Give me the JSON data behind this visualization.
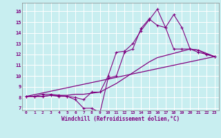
{
  "xlabel": "Windchill (Refroidissement éolien,°C)",
  "bg_color": "#c8eef0",
  "line_color": "#800080",
  "grid_color": "#ffffff",
  "xlim": [
    -0.5,
    23.5
  ],
  "ylim": [
    6.8,
    16.8
  ],
  "yticks": [
    7,
    8,
    9,
    10,
    11,
    12,
    13,
    14,
    15,
    16
  ],
  "xticks": [
    0,
    1,
    2,
    3,
    4,
    5,
    6,
    7,
    8,
    9,
    10,
    11,
    12,
    13,
    14,
    15,
    16,
    17,
    18,
    19,
    20,
    21,
    22,
    23
  ],
  "series": [
    {
      "x": [
        0,
        1,
        2,
        3,
        4,
        5,
        6,
        7,
        8,
        9,
        10,
        11,
        12,
        13,
        14,
        15,
        16,
        17,
        18,
        19,
        20,
        21,
        22,
        23
      ],
      "y": [
        8.1,
        8.1,
        8.3,
        8.3,
        8.2,
        8.1,
        8.0,
        7.8,
        8.5,
        8.5,
        10.0,
        12.2,
        12.3,
        13.0,
        14.2,
        15.2,
        16.2,
        14.5,
        15.7,
        14.5,
        12.5,
        12.4,
        12.0,
        11.8
      ]
    },
    {
      "x": [
        0,
        1,
        2,
        3,
        4,
        5,
        6,
        7,
        8,
        9,
        10,
        11,
        12,
        13,
        14,
        15,
        16,
        17,
        18,
        19,
        20,
        21,
        22,
        23
      ],
      "y": [
        8.1,
        8.1,
        8.1,
        8.2,
        8.1,
        8.1,
        7.8,
        7.0,
        7.0,
        6.6,
        9.8,
        10.0,
        12.2,
        12.5,
        14.4,
        15.3,
        14.7,
        14.5,
        12.5,
        12.5,
        12.5,
        12.2,
        12.0,
        11.8
      ]
    },
    {
      "x": [
        0,
        1,
        2,
        3,
        4,
        5,
        6,
        7,
        8,
        9,
        10,
        11,
        12,
        13,
        14,
        15,
        16,
        17,
        18,
        19,
        20,
        21,
        22,
        23
      ],
      "y": [
        8.1,
        8.1,
        8.1,
        8.2,
        8.2,
        8.2,
        8.3,
        8.3,
        8.4,
        8.5,
        8.9,
        9.3,
        9.8,
        10.3,
        10.8,
        11.3,
        11.7,
        11.9,
        12.1,
        12.3,
        12.5,
        12.4,
        12.1,
        11.8
      ]
    },
    {
      "x": [
        0,
        23
      ],
      "y": [
        8.1,
        11.8
      ]
    }
  ]
}
